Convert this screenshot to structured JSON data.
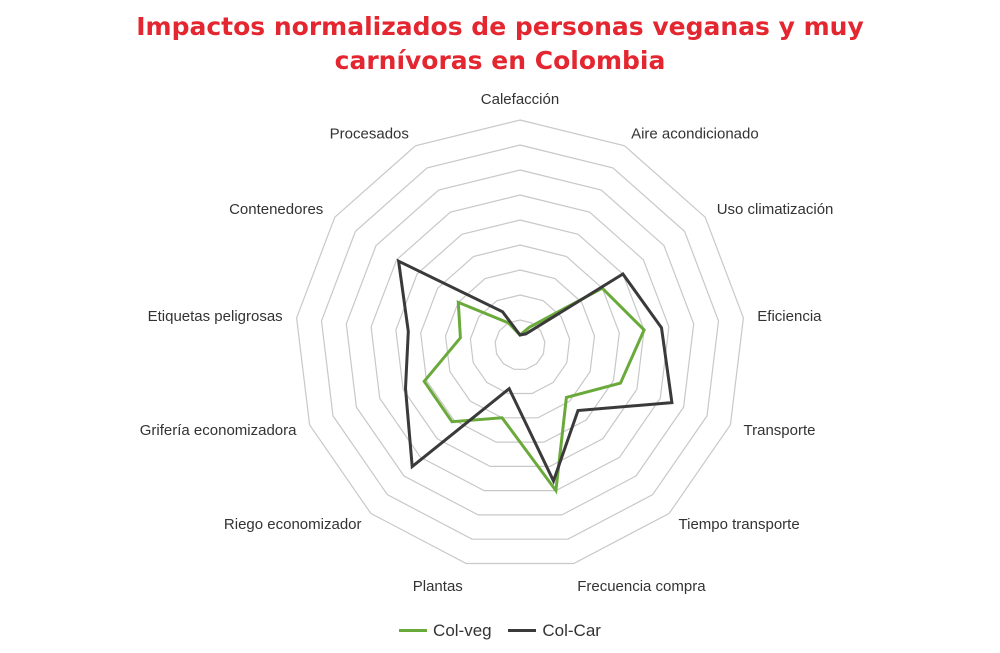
{
  "chart_data": {
    "type": "radar",
    "title_lines": [
      "Impactos normalizados de personas veganas y muy",
      "carnívoras en Colombia"
    ],
    "categories": [
      "Calefacción",
      "Aire acondicionado",
      "Uso climatización",
      "Eficiencia",
      "Transporte",
      "Tiempo transporte",
      "Frecuencia compra",
      "Plantas",
      "Riego economizador",
      "Grifería economizadora",
      "Etiquetas peligrosas",
      "Contenedores",
      "Procesados"
    ],
    "rmax": 9,
    "rings": 9,
    "grid": true,
    "legend_position": "bottom",
    "series": [
      {
        "name": "Col-veg",
        "color": "#6aaa3a",
        "values": [
          0.4,
          0.8,
          4.0,
          5.0,
          4.3,
          2.8,
          6.0,
          3.0,
          4.1,
          4.1,
          2.4,
          3.0,
          1.0
        ]
      },
      {
        "name": "Col-Car",
        "color": "#3a3a3a",
        "values": [
          0.4,
          0.5,
          5.0,
          5.7,
          6.5,
          3.5,
          5.6,
          1.8,
          6.5,
          4.9,
          4.5,
          5.9,
          1.5
        ]
      }
    ]
  }
}
